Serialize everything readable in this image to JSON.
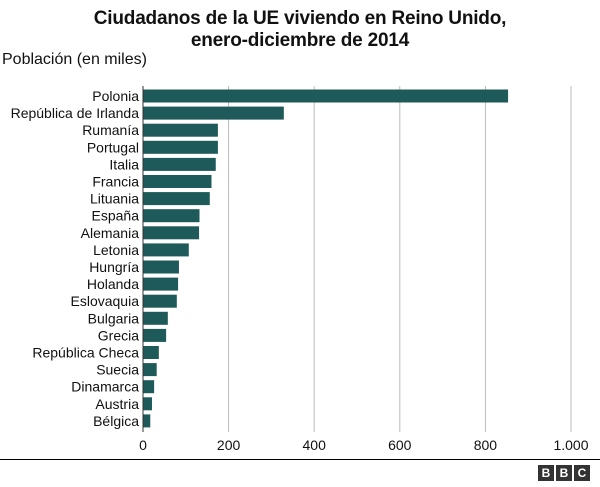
{
  "chart_data": {
    "type": "bar",
    "orientation": "horizontal",
    "title": "Ciudadanos de la UE viviendo en Reino Unido,\nenero-diciembre de 2014",
    "ylabel": "Población (en miles)",
    "xlabel": "",
    "xlim": [
      0,
      1000
    ],
    "xticks": [
      0,
      200,
      400,
      600,
      800,
      1000
    ],
    "xtick_labels": [
      "0",
      "200",
      "400",
      "600",
      "800",
      "1.000"
    ],
    "grid": "vertical",
    "bar_color": "#1f5a5a",
    "categories": [
      "Polonia",
      "República de Irlanda",
      "Rumanía",
      "Portugal",
      "Italia",
      "Francia",
      "Lituania",
      "España",
      "Alemania",
      "Letonia",
      "Hungría",
      "Holanda",
      "Eslovaquia",
      "Bulgaria",
      "Grecia",
      "República Checa",
      "Suecia",
      "Dinamarca",
      "Austria",
      "Bélgica"
    ],
    "values": [
      853,
      329,
      175,
      175,
      170,
      160,
      156,
      132,
      131,
      107,
      84,
      82,
      79,
      58,
      54,
      37,
      32,
      26,
      21,
      17
    ]
  },
  "branding": {
    "logo_letters": [
      "B",
      "B",
      "C"
    ]
  }
}
